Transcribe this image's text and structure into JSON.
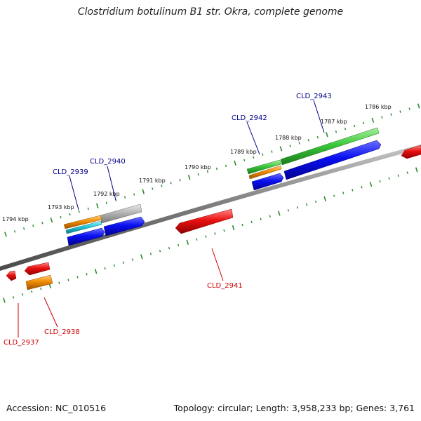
{
  "title": "Clostridium botulinum B1 str. Okra, complete genome",
  "footer": {
    "accession": "Accession: NC_010516",
    "stats": "Topology: circular; Length: 3,958,233 bp; Genes: 3,761"
  },
  "kbp_labels": [
    "1786 kbp",
    "1787 kbp",
    "1788 kbp",
    "1789 kbp",
    "1790 kbp",
    "1791 kbp",
    "1792 kbp",
    "1793 kbp",
    "1794 kbp"
  ],
  "genes_forward": [
    "CLD_2943",
    "CLD_2942",
    "CLD_2940",
    "CLD_2939"
  ],
  "genes_reverse": [
    "CLD_2941",
    "CLD_2938",
    "CLD_2937"
  ],
  "colors": {
    "backbone": "#808080",
    "forward_label": "#00008b",
    "reverse_label": "#cc0000",
    "tick": "#2a8a2a",
    "blue": "#0a10f0",
    "green": "#3cc83c",
    "orange": "#f08c00",
    "cyan": "#20c8d8",
    "gray": "#b4b4b4",
    "red": "#e81010"
  }
}
